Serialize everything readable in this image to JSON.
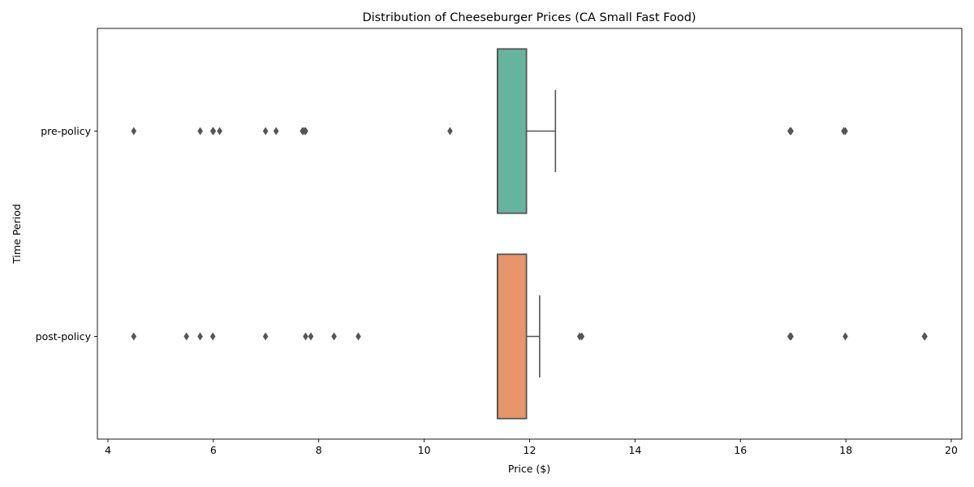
{
  "chart_data": {
    "type": "boxplot",
    "orientation": "horizontal",
    "title": "Distribution of Cheeseburger Prices (CA Small Fast Food)",
    "xlabel": "Price ($)",
    "ylabel": "Time Period",
    "xlim": [
      3.8,
      20.2
    ],
    "xticks": [
      4,
      6,
      8,
      10,
      12,
      14,
      16,
      18,
      20
    ],
    "grid": false,
    "legend": "none",
    "categories": [
      "pre-policy",
      "post-policy"
    ],
    "series": [
      {
        "category": "pre-policy",
        "color": "#66b3a0",
        "q1": 11.39,
        "median": 11.39,
        "q3": 11.94,
        "whisker_low": 11.39,
        "whisker_high": 12.49,
        "outliers": [
          4.49,
          5.75,
          5.99,
          6.0,
          6.12,
          6.99,
          7.19,
          7.69,
          7.72,
          7.75,
          10.49,
          16.94,
          16.96,
          17.96,
          17.99
        ]
      },
      {
        "category": "post-policy",
        "color": "#e8956b",
        "q1": 11.39,
        "median": 11.39,
        "q3": 11.94,
        "whisker_low": 11.39,
        "whisker_high": 12.19,
        "outliers": [
          4.49,
          5.49,
          5.75,
          5.99,
          6.99,
          7.75,
          7.85,
          8.29,
          8.75,
          12.95,
          12.99,
          16.94,
          16.96,
          17.99,
          19.49,
          19.5
        ]
      }
    ],
    "colors": {
      "box_edge": "#555555",
      "outlier": "#555555",
      "axis": "#000000"
    }
  }
}
